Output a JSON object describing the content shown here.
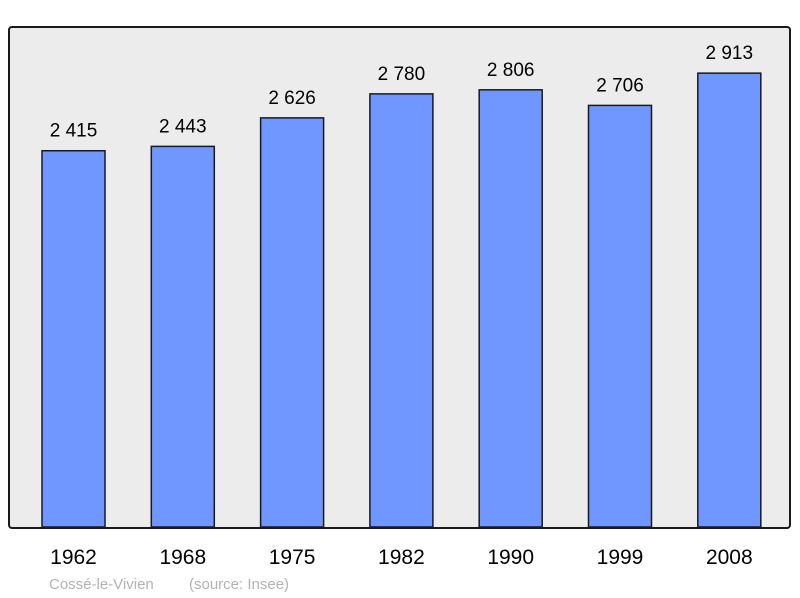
{
  "chart_data": {
    "type": "bar",
    "categories": [
      "1962",
      "1968",
      "1975",
      "1982",
      "1990",
      "1999",
      "2008"
    ],
    "values": [
      2415,
      2443,
      2626,
      2780,
      2806,
      2706,
      2913
    ],
    "value_labels": [
      "2 415",
      "2 443",
      "2 626",
      "2 780",
      "2 806",
      "2 706",
      "2 913"
    ],
    "ylim": [
      0,
      3200
    ],
    "grid": false,
    "colors": {
      "bar": "#7097ff",
      "plot_background": "#ececec",
      "frame": "#1a1a1a"
    },
    "footer": {
      "place": "Cossé-le-Vivien",
      "source": "(source: Insee)"
    }
  }
}
